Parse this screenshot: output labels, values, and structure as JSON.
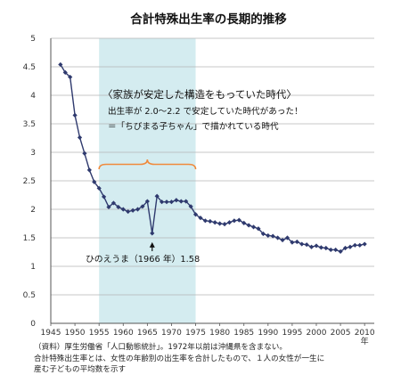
{
  "chart_data": {
    "type": "line",
    "title": "合計特殊出生率の長期的推移",
    "x_unit": "年",
    "xlim": [
      1945,
      2012
    ],
    "ylim": [
      0,
      5
    ],
    "xticks": [
      1945,
      1950,
      1955,
      1960,
      1965,
      1970,
      1975,
      1980,
      1985,
      1990,
      1995,
      2000,
      2005,
      2010
    ],
    "yticks": [
      0,
      0.5,
      1,
      1.5,
      2,
      2.5,
      3,
      3.5,
      4,
      4.5,
      5
    ],
    "ytick_labels": [
      "0",
      "0.5",
      "1",
      "1.5",
      "2",
      "2.5",
      "3",
      "3.5",
      "4",
      "4.5",
      "5"
    ],
    "grid": true,
    "series_color": "#2f3a6e",
    "highlight": {
      "x_range": [
        1955,
        1975
      ],
      "color": "#d4ecf0",
      "label_title": "〈家族が安定した構造をもっていた時代〉",
      "label_line1": "出生率が 2.0〜2.2 で安定していた時代があった！",
      "label_line2": "＝「ちびまる子ちゃん」で描かれている時代",
      "brace_color": "#f08a3c"
    },
    "annotation_min": {
      "x": 1966,
      "y": 1.58,
      "label": "ひのえうま（1966 年）1.58"
    },
    "x": [
      1947,
      1948,
      1949,
      1950,
      1951,
      1952,
      1953,
      1954,
      1955,
      1956,
      1957,
      1958,
      1959,
      1960,
      1961,
      1962,
      1963,
      1964,
      1965,
      1966,
      1967,
      1968,
      1969,
      1970,
      1971,
      1972,
      1973,
      1974,
      1975,
      1976,
      1977,
      1978,
      1979,
      1980,
      1981,
      1982,
      1983,
      1984,
      1985,
      1986,
      1987,
      1988,
      1989,
      1990,
      1991,
      1992,
      1993,
      1994,
      1995,
      1996,
      1997,
      1998,
      1999,
      2000,
      2001,
      2002,
      2003,
      2004,
      2005,
      2006,
      2007,
      2008,
      2009,
      2010
    ],
    "values": [
      4.54,
      4.4,
      4.32,
      3.65,
      3.26,
      2.98,
      2.69,
      2.48,
      2.37,
      2.22,
      2.04,
      2.11,
      2.04,
      2.0,
      1.96,
      1.98,
      2.0,
      2.05,
      2.14,
      1.58,
      2.23,
      2.13,
      2.13,
      2.13,
      2.16,
      2.14,
      2.14,
      2.05,
      1.91,
      1.85,
      1.8,
      1.79,
      1.77,
      1.75,
      1.74,
      1.77,
      1.8,
      1.81,
      1.76,
      1.72,
      1.69,
      1.66,
      1.57,
      1.54,
      1.53,
      1.5,
      1.46,
      1.5,
      1.42,
      1.43,
      1.39,
      1.38,
      1.34,
      1.36,
      1.33,
      1.32,
      1.29,
      1.29,
      1.26,
      1.32,
      1.34,
      1.37,
      1.37,
      1.39
    ]
  },
  "notes": {
    "line1": "（資料）厚生労働省「人口動態統計」。1972年以前は沖縄県を含まない。",
    "line2": "合計特殊出生率とは、女性の年齢別の出生率を合計したもので、１人の女性が一生に",
    "line3": "産む子どもの平均数を示す"
  }
}
